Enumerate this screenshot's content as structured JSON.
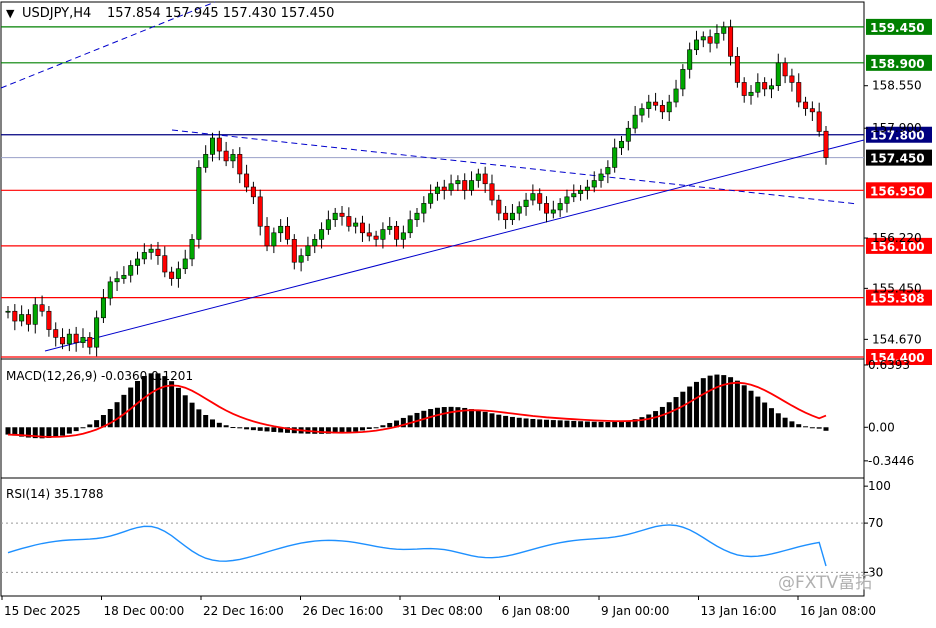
{
  "header": {
    "arrow": "▼",
    "symbol_tf": "USDJPY,H4",
    "ohlc": "157.854 157.945 157.430 157.450"
  },
  "colors": {
    "bull_candle": "#00a800",
    "bear_candle": "#ff0000",
    "macd_hist": "#000000",
    "macd_signal": "#ff0000",
    "rsi_line": "#1e90ff",
    "trendline": "#0000cc",
    "support_line": "#ff0000",
    "resistance_line": "#008000",
    "price_line": "#000080",
    "label_red_bg": "#ff0000",
    "label_green_bg": "#008000",
    "label_blue_bg": "#000080",
    "label_current_bg": "#000000"
  },
  "chart_data": {
    "type": "candlestick",
    "symbol": "USDJPY",
    "timeframe": "H4",
    "price_axis": {
      "ylim": [
        154.4,
        159.8
      ],
      "ticks": [
        "158.550",
        "157.900",
        "156.220",
        "155.450",
        "154.670"
      ]
    },
    "time_axis": {
      "ticks": [
        "15 Dec 2025",
        "18 Dec 00:00",
        "22 Dec 16:00",
        "26 Dec 16:00",
        "31 Dec 08:00",
        "6 Jan 08:00",
        "9 Jan 00:00",
        "13 Jan 16:00",
        "16 Jan 08:00"
      ]
    },
    "candles": {
      "start_price": 155.1,
      "closes": [
        155.1,
        154.95,
        155.05,
        154.9,
        155.2,
        155.1,
        154.82,
        154.7,
        154.6,
        154.75,
        154.62,
        154.7,
        154.55,
        155.0,
        155.3,
        155.55,
        155.6,
        155.65,
        155.8,
        155.9,
        156.0,
        156.05,
        155.95,
        155.7,
        155.6,
        155.75,
        155.9,
        156.2,
        157.3,
        157.5,
        157.75,
        157.55,
        157.4,
        157.5,
        157.2,
        157.0,
        156.85,
        156.4,
        156.1,
        156.3,
        156.4,
        156.2,
        155.85,
        155.95,
        156.1,
        156.2,
        156.35,
        156.5,
        156.6,
        156.55,
        156.4,
        156.45,
        156.3,
        156.25,
        156.2,
        156.35,
        156.4,
        156.2,
        156.3,
        156.5,
        156.6,
        156.75,
        156.9,
        157.0,
        156.95,
        157.05,
        157.1,
        156.95,
        157.1,
        157.2,
        157.05,
        156.8,
        156.6,
        156.5,
        156.6,
        156.7,
        156.8,
        156.9,
        156.75,
        156.6,
        156.65,
        156.75,
        156.85,
        156.9,
        156.95,
        157.0,
        157.1,
        157.2,
        157.3,
        157.6,
        157.7,
        157.9,
        158.1,
        158.2,
        158.3,
        158.25,
        158.15,
        158.3,
        158.5,
        158.8,
        159.1,
        159.25,
        159.3,
        159.2,
        159.35,
        159.45,
        159.0,
        158.6,
        158.4,
        158.45,
        158.6,
        158.5,
        158.55,
        158.9,
        158.7,
        158.6,
        158.3,
        158.2,
        158.15,
        157.85,
        157.45
      ],
      "last": {
        "open": 157.854,
        "high": 157.945,
        "low": 157.43,
        "close": 157.45
      }
    },
    "horizontal_levels": [
      {
        "price": 159.45,
        "label": "159.450",
        "kind": "resistance"
      },
      {
        "price": 158.9,
        "label": "158.900",
        "kind": "resistance"
      },
      {
        "price": 157.8,
        "label": "157.800",
        "kind": "pivot"
      },
      {
        "price": 157.45,
        "label": "157.450",
        "kind": "current"
      },
      {
        "price": 156.95,
        "label": "156.950",
        "kind": "support"
      },
      {
        "price": 156.1,
        "label": "156.100",
        "kind": "support"
      },
      {
        "price": 155.308,
        "label": "155.308",
        "kind": "support"
      },
      {
        "price": 154.4,
        "label": "154.400",
        "kind": "support"
      }
    ],
    "macd": {
      "label": "MACD(12,26,9) -0.0360 0.1201",
      "params": [
        12,
        26,
        9
      ],
      "value": -0.036,
      "signal": 0.1201,
      "ylim": [
        -0.5,
        0.68
      ],
      "ticks": [
        "0.6393",
        "0.00",
        "-0.3446"
      ]
    },
    "rsi": {
      "label": "RSI(14) 35.1788",
      "period": 14,
      "value": 35.1788,
      "ylim": [
        10,
        105
      ],
      "ticks": [
        "100",
        "70",
        "30"
      ],
      "levels": [
        70,
        30
      ]
    }
  },
  "watermark": "@FXTV富拓"
}
